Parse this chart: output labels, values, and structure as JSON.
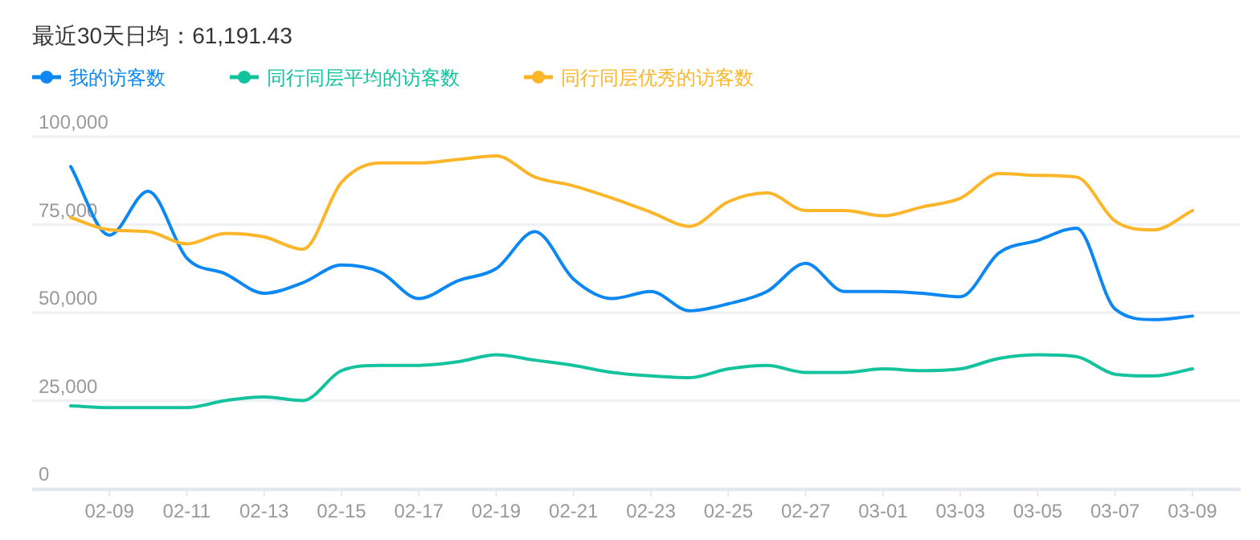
{
  "chart_data": {
    "type": "line",
    "title": "最近30天日均：61,191.43",
    "categories": [
      null,
      "02-09",
      null,
      "02-11",
      null,
      "02-13",
      null,
      "02-15",
      null,
      "02-17",
      null,
      "02-19",
      null,
      "02-21",
      null,
      "02-23",
      null,
      "02-25",
      null,
      "02-27",
      null,
      "03-01",
      null,
      "03-03",
      null,
      "03-05",
      null,
      "03-07",
      null,
      "03-09"
    ],
    "series": [
      {
        "name": "我的访客数",
        "color": "#0d88f2",
        "values": [
          91500,
          72000,
          84500,
          65500,
          61000,
          55500,
          58500,
          63500,
          61500,
          54000,
          59000,
          62500,
          73000,
          59500,
          54000,
          56000,
          50500,
          52500,
          56000,
          64000,
          56000,
          56000,
          55500,
          54500,
          67000,
          70500,
          74000,
          51000,
          48000,
          49000
        ]
      },
      {
        "name": "同行同层平均的访客数",
        "color": "#14c39e",
        "values": [
          23500,
          23000,
          23000,
          23000,
          25000,
          26000,
          25000,
          33500,
          35000,
          35000,
          36000,
          38000,
          36500,
          35000,
          33000,
          32000,
          31500,
          34000,
          35000,
          33000,
          33000,
          34000,
          33500,
          34000,
          37000,
          38000,
          37500,
          32500,
          32000,
          34000
        ]
      },
      {
        "name": "同行同层优秀的访客数",
        "color": "#fdb52a",
        "values": [
          77000,
          73500,
          73000,
          69500,
          72500,
          71500,
          68000,
          87000,
          92500,
          92500,
          93500,
          94500,
          88500,
          86000,
          82500,
          78500,
          74500,
          81500,
          84000,
          79000,
          79000,
          77500,
          80000,
          82500,
          89500,
          89000,
          88500,
          76000,
          73500,
          79000
        ]
      }
    ],
    "ylim": [
      0,
      100000
    ],
    "yticks": [
      0,
      {
        "value": 25000,
        "label": "25,000"
      },
      {
        "value": 50000,
        "label": "50,000"
      },
      {
        "value": 75000,
        "label": "75,000"
      },
      {
        "value": 100000,
        "label": "100,000"
      }
    ],
    "grid": "y",
    "legend": "top left",
    "marker": "none",
    "line_style": "solid"
  }
}
